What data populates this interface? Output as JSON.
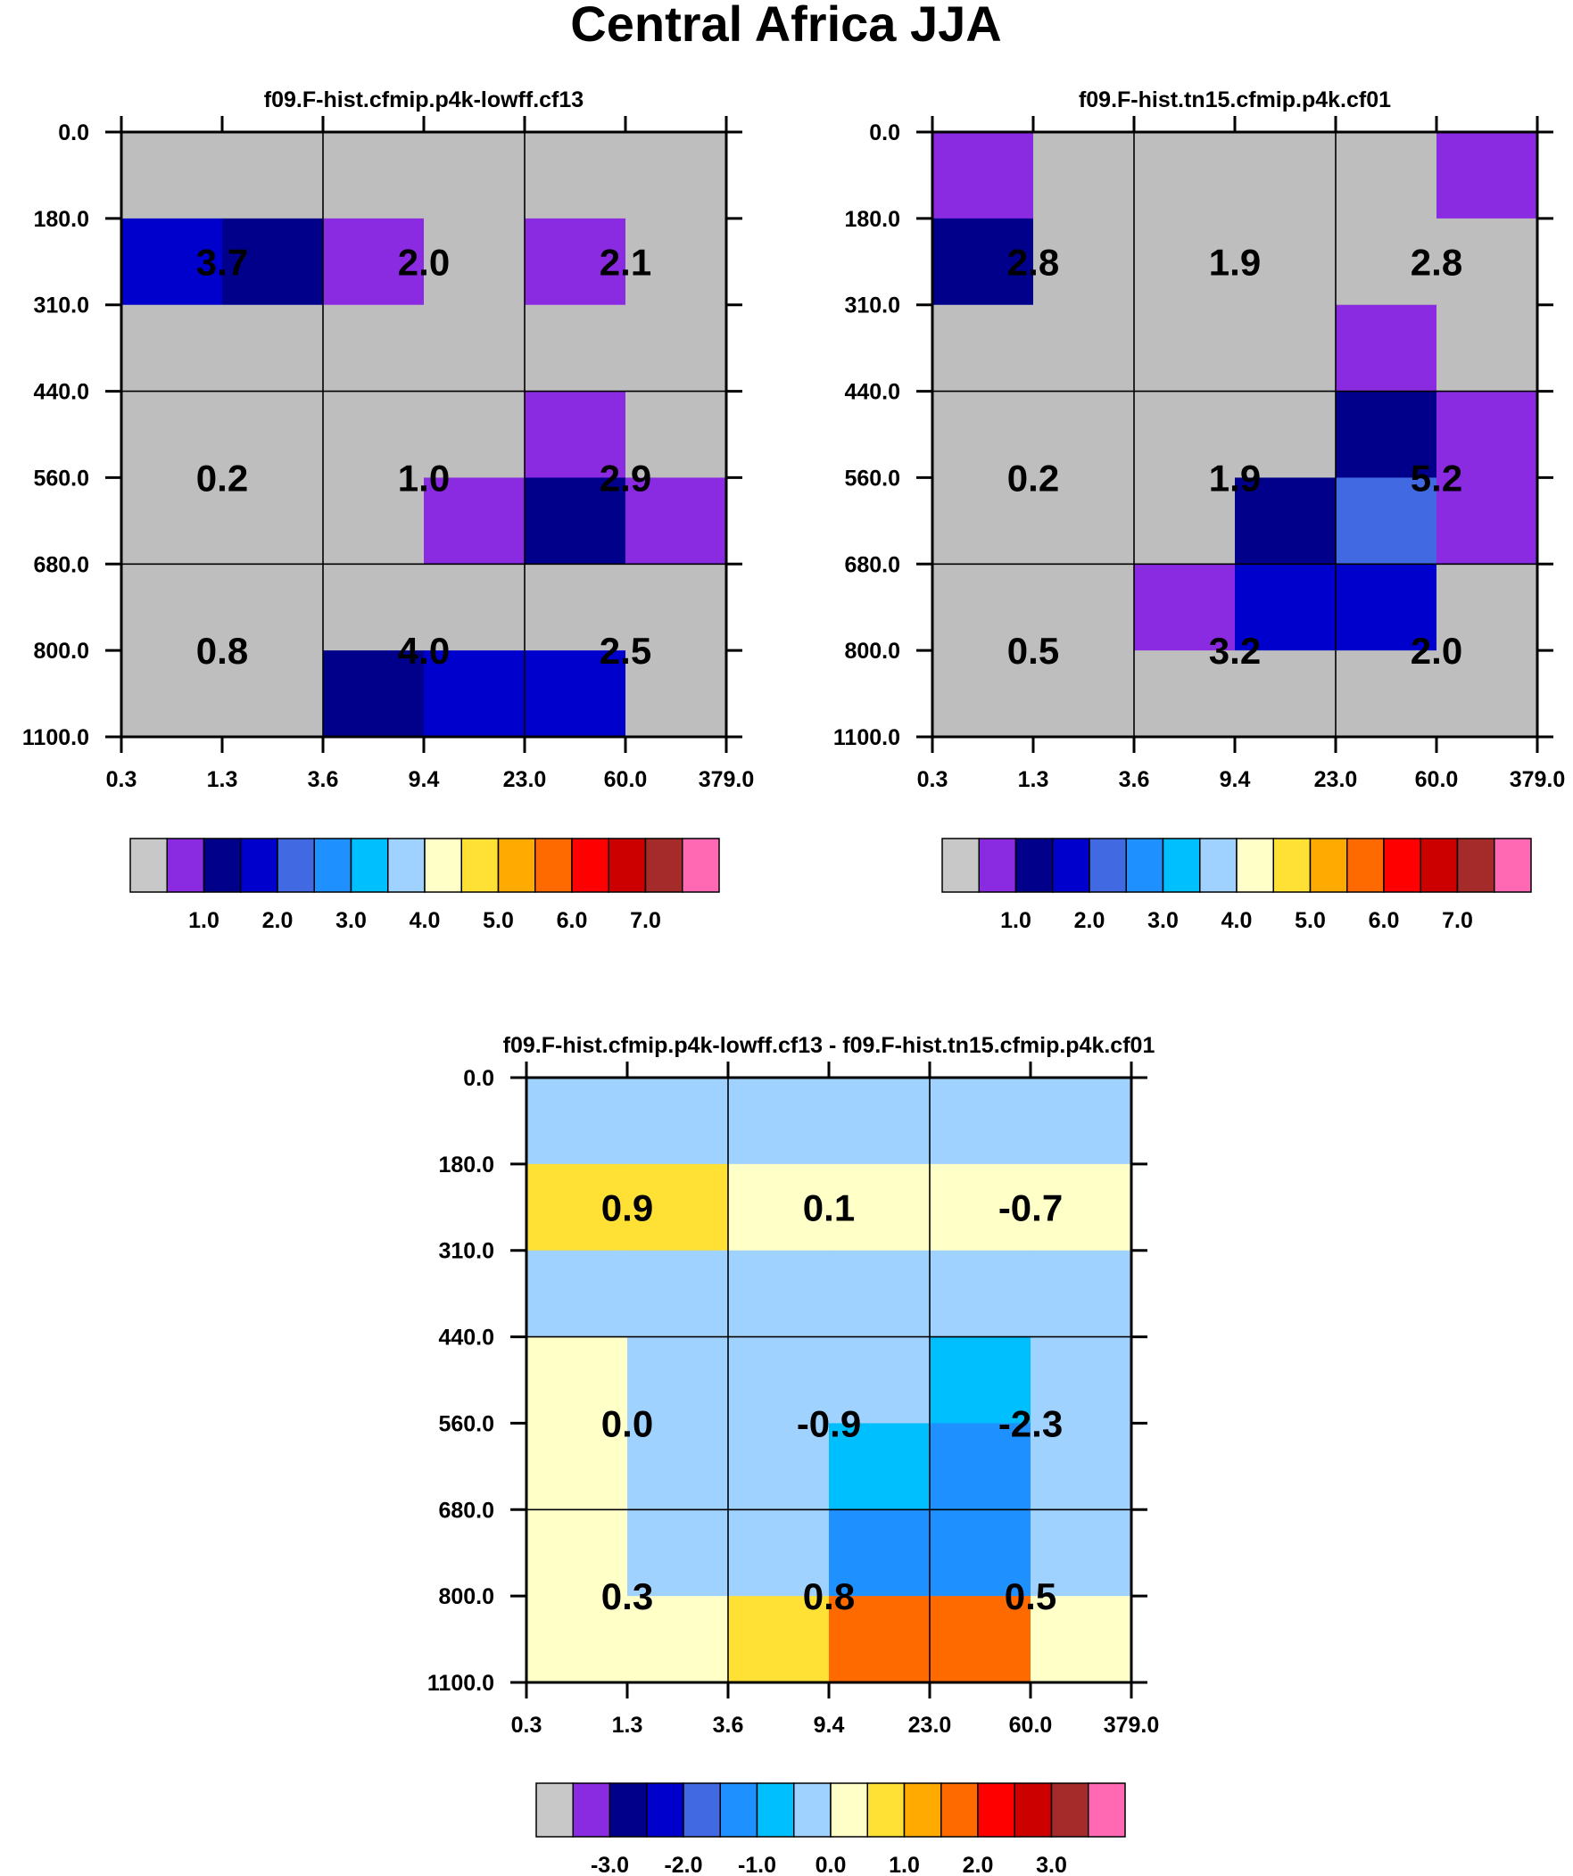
{
  "title": "Central Africa JJA",
  "chart_data": [
    {
      "type": "heatmap",
      "title": "f09.F-hist.cfmip.p4k-lowff.cf13",
      "x_ticks": [
        "0.3",
        "1.3",
        "3.6",
        "9.4",
        "23.0",
        "60.0",
        "379.0"
      ],
      "y_ticks": [
        "0.0",
        "180.0",
        "310.0",
        "440.0",
        "560.0",
        "680.0",
        "800.0",
        "1100.0"
      ],
      "cells": [
        [
          "#bebebe",
          "#bebebe",
          "#bebebe",
          "#bebebe",
          "#bebebe",
          "#bebebe"
        ],
        [
          "#0000cd",
          "#00008b",
          "#8a2be2",
          "#bebebe",
          "#8a2be2",
          "#bebebe"
        ],
        [
          "#bebebe",
          "#bebebe",
          "#bebebe",
          "#bebebe",
          "#bebebe",
          "#bebebe"
        ],
        [
          "#bebebe",
          "#bebebe",
          "#bebebe",
          "#bebebe",
          "#8a2be2",
          "#bebebe"
        ],
        [
          "#bebebe",
          "#bebebe",
          "#bebebe",
          "#8a2be2",
          "#00008b",
          "#8a2be2"
        ],
        [
          "#bebebe",
          "#bebebe",
          "#bebebe",
          "#bebebe",
          "#bebebe",
          "#bebebe"
        ],
        [
          "#bebebe",
          "#bebebe",
          "#00008b",
          "#0000cd",
          "#0000cd",
          "#bebebe"
        ]
      ],
      "values": [
        [
          "3.7",
          "2.0",
          "2.1"
        ],
        [
          "0.2",
          "1.0",
          "2.9"
        ],
        [
          "0.8",
          "4.0",
          "2.5"
        ]
      ],
      "colorbar": {
        "colors": [
          "#c8c8c8",
          "#8a2be2",
          "#00008b",
          "#0000cd",
          "#4169e1",
          "#1e90ff",
          "#00bfff",
          "#a0d2ff",
          "#ffffc8",
          "#ffe135",
          "#ffaa00",
          "#ff6a00",
          "#ff0000",
          "#cd0000",
          "#a52a2a",
          "#ff69b4"
        ],
        "labels": [
          "1.0",
          "2.0",
          "3.0",
          "4.0",
          "5.0",
          "6.0",
          "7.0"
        ]
      }
    },
    {
      "type": "heatmap",
      "title": "f09.F-hist.tn15.cfmip.p4k.cf01",
      "x_ticks": [
        "0.3",
        "1.3",
        "3.6",
        "9.4",
        "23.0",
        "60.0",
        "379.0"
      ],
      "y_ticks": [
        "0.0",
        "180.0",
        "310.0",
        "440.0",
        "560.0",
        "680.0",
        "800.0",
        "1100.0"
      ],
      "cells": [
        [
          "#8a2be2",
          "#bebebe",
          "#bebebe",
          "#bebebe",
          "#bebebe",
          "#8a2be2"
        ],
        [
          "#00008b",
          "#bebebe",
          "#bebebe",
          "#bebebe",
          "#bebebe",
          "#bebebe"
        ],
        [
          "#bebebe",
          "#bebebe",
          "#bebebe",
          "#bebebe",
          "#8a2be2",
          "#bebebe"
        ],
        [
          "#bebebe",
          "#bebebe",
          "#bebebe",
          "#bebebe",
          "#00008b",
          "#8a2be2"
        ],
        [
          "#bebebe",
          "#bebebe",
          "#bebebe",
          "#00008b",
          "#4169e1",
          "#8a2be2"
        ],
        [
          "#bebebe",
          "#bebebe",
          "#8a2be2",
          "#0000cd",
          "#0000cd",
          "#bebebe"
        ],
        [
          "#bebebe",
          "#bebebe",
          "#bebebe",
          "#bebebe",
          "#bebebe",
          "#bebebe"
        ]
      ],
      "values": [
        [
          "2.8",
          "1.9",
          "2.8"
        ],
        [
          "0.2",
          "1.9",
          "5.2"
        ],
        [
          "0.5",
          "3.2",
          "2.0"
        ]
      ],
      "colorbar": {
        "colors": [
          "#c8c8c8",
          "#8a2be2",
          "#00008b",
          "#0000cd",
          "#4169e1",
          "#1e90ff",
          "#00bfff",
          "#a0d2ff",
          "#ffffc8",
          "#ffe135",
          "#ffaa00",
          "#ff6a00",
          "#ff0000",
          "#cd0000",
          "#a52a2a",
          "#ff69b4"
        ],
        "labels": [
          "1.0",
          "2.0",
          "3.0",
          "4.0",
          "5.0",
          "6.0",
          "7.0"
        ]
      }
    },
    {
      "type": "heatmap",
      "title": "f09.F-hist.cfmip.p4k-lowff.cf13 - f09.F-hist.tn15.cfmip.p4k.cf01",
      "x_ticks": [
        "0.3",
        "1.3",
        "3.6",
        "9.4",
        "23.0",
        "60.0",
        "379.0"
      ],
      "y_ticks": [
        "0.0",
        "180.0",
        "310.0",
        "440.0",
        "560.0",
        "680.0",
        "800.0",
        "1100.0"
      ],
      "cells": [
        [
          "#a0d2ff",
          "#a0d2ff",
          "#a0d2ff",
          "#a0d2ff",
          "#a0d2ff",
          "#a0d2ff"
        ],
        [
          "#ffe135",
          "#ffe135",
          "#ffffc8",
          "#ffffc8",
          "#ffffc8",
          "#ffffc8"
        ],
        [
          "#a0d2ff",
          "#a0d2ff",
          "#a0d2ff",
          "#a0d2ff",
          "#a0d2ff",
          "#a0d2ff"
        ],
        [
          "#ffffc8",
          "#a0d2ff",
          "#a0d2ff",
          "#a0d2ff",
          "#00bfff",
          "#a0d2ff"
        ],
        [
          "#ffffc8",
          "#a0d2ff",
          "#a0d2ff",
          "#00bfff",
          "#1e90ff",
          "#a0d2ff"
        ],
        [
          "#ffffc8",
          "#a0d2ff",
          "#a0d2ff",
          "#1e90ff",
          "#1e90ff",
          "#a0d2ff"
        ],
        [
          "#ffffc8",
          "#ffffc8",
          "#ffe135",
          "#ff6a00",
          "#ff6a00",
          "#ffffc8"
        ]
      ],
      "values": [
        [
          "0.9",
          "0.1",
          "-0.7"
        ],
        [
          "0.0",
          "-0.9",
          "-2.3"
        ],
        [
          "0.3",
          "0.8",
          "0.5"
        ]
      ],
      "colorbar": {
        "colors": [
          "#c8c8c8",
          "#8a2be2",
          "#00008b",
          "#0000cd",
          "#4169e1",
          "#1e90ff",
          "#00bfff",
          "#a0d2ff",
          "#ffffc8",
          "#ffe135",
          "#ffaa00",
          "#ff6a00",
          "#ff0000",
          "#cd0000",
          "#a52a2a",
          "#ff69b4"
        ],
        "labels": [
          "-3.0",
          "-2.0",
          "-1.0",
          "0.0",
          "1.0",
          "2.0",
          "3.0"
        ]
      }
    }
  ]
}
